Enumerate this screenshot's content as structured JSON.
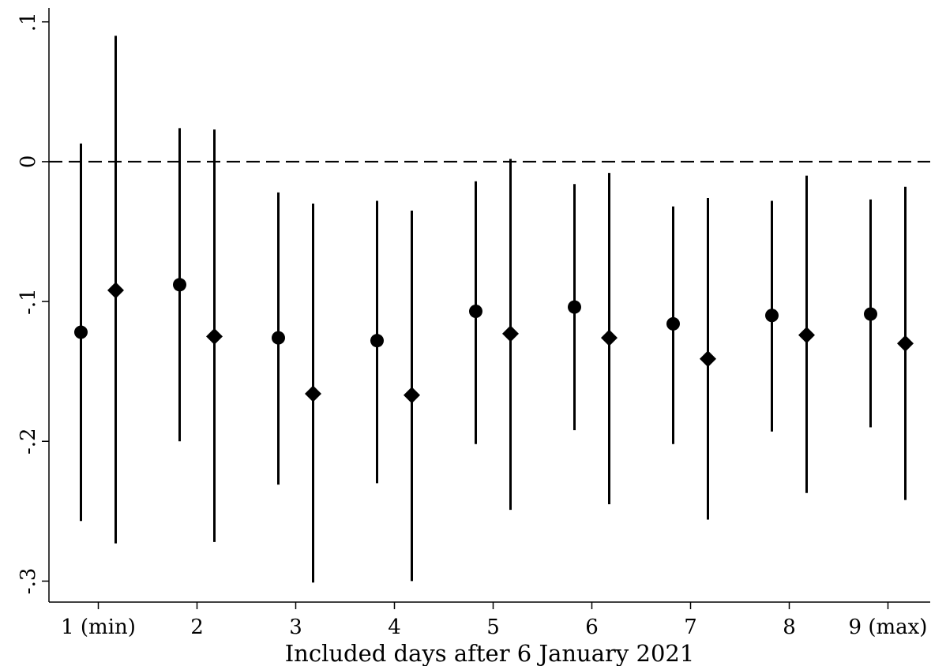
{
  "chart_data": {
    "type": "scatter",
    "subtype": "coefficient-plot-with-confidence-intervals",
    "xlabel": "Included days after 6 January 2021",
    "categories": [
      "1 (min)",
      "2",
      "3",
      "4",
      "5",
      "6",
      "7",
      "8",
      "9 (max)"
    ],
    "yticks": [
      {
        "value": 0.1,
        "label": ".1"
      },
      {
        "value": 0,
        "label": "0"
      },
      {
        "value": -0.1,
        "label": "-.1"
      },
      {
        "value": -0.2,
        "label": "-.2"
      },
      {
        "value": -0.3,
        "label": "-.3"
      }
    ],
    "ylim": [
      -0.315,
      0.11
    ],
    "reference_line": {
      "y": 0,
      "style": "dashed"
    },
    "series": [
      {
        "marker": "circle",
        "values": [
          -0.122,
          -0.088,
          -0.126,
          -0.128,
          -0.107,
          -0.104,
          -0.116,
          -0.11,
          -0.109
        ],
        "ci_low": [
          -0.257,
          -0.2,
          -0.231,
          -0.23,
          -0.202,
          -0.192,
          -0.202,
          -0.193,
          -0.19
        ],
        "ci_high": [
          0.013,
          0.024,
          -0.022,
          -0.028,
          -0.014,
          -0.016,
          -0.032,
          -0.028,
          -0.027
        ]
      },
      {
        "marker": "diamond",
        "values": [
          -0.092,
          -0.125,
          -0.166,
          -0.167,
          -0.123,
          -0.126,
          -0.141,
          -0.124,
          -0.13
        ],
        "ci_low": [
          -0.273,
          -0.272,
          -0.301,
          -0.3,
          -0.249,
          -0.245,
          -0.256,
          -0.237,
          -0.242
        ],
        "ci_high": [
          0.09,
          0.023,
          -0.03,
          -0.035,
          0.002,
          -0.008,
          -0.026,
          -0.01,
          -0.018
        ]
      }
    ],
    "grid": false,
    "legend": "none"
  }
}
